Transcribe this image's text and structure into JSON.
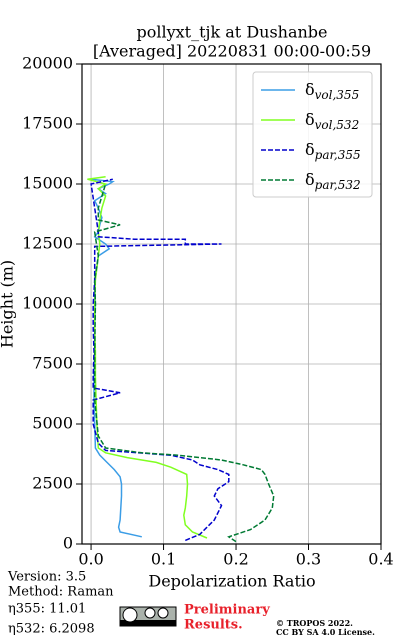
{
  "chart_data": {
    "type": "profile",
    "title": "pollyxt_tjk at Dushanbe",
    "subtitle": "[Averaged] 20220831 00:00-00:59",
    "x_label": "Depolarization Ratio",
    "y_label": "Height (m)",
    "xlim": [
      -0.0125,
      0.4
    ],
    "ylim": [
      0,
      20000
    ],
    "xticks": [
      {
        "value": 0,
        "label": "0.0"
      },
      0.1,
      0.2,
      0.3,
      0.4
    ],
    "yticks": [
      0,
      2500,
      5000,
      7500,
      10000,
      12500,
      15000,
      17500,
      20000
    ],
    "grid": true,
    "legend": "upper right",
    "series": [
      {
        "name": "δvol,355",
        "color": "#3b9de6",
        "linestyle": "solid",
        "y": [
          300,
          500,
          700,
          1000,
          1500,
          2000,
          2500,
          2800,
          3100,
          3400,
          3700,
          4000,
          5000,
          6000,
          7000,
          8000,
          9000,
          10000,
          11000,
          11500,
          12000,
          12300,
          12500,
          12800,
          13000,
          13300,
          13600,
          14000,
          14300,
          14600,
          14800,
          15000,
          15100,
          15200
        ],
        "x": [
          0.07,
          0.04,
          0.038,
          0.04,
          0.041,
          0.042,
          0.042,
          0.04,
          0.032,
          0.022,
          0.012,
          0.006,
          0.005,
          0.004,
          0.004,
          0.005,
          0.005,
          0.006,
          0.005,
          0.008,
          0.01,
          0.025,
          0.02,
          0.005,
          0.01,
          0.012,
          0.015,
          0.01,
          0.005,
          0.02,
          0.01,
          0.025,
          0.03,
          0.0
        ]
      },
      {
        "name": "δvol,532",
        "color": "#80ff20",
        "linestyle": "solid",
        "y": [
          250,
          500,
          800,
          1200,
          1500,
          2000,
          2500,
          2900,
          3200,
          3400,
          3600,
          3800,
          4000,
          5000,
          6000,
          7000,
          8000,
          9000,
          10000,
          11000,
          12000,
          12500,
          13000,
          13500,
          14000,
          14500,
          14800,
          15000,
          15200,
          15300
        ],
        "x": [
          0.16,
          0.14,
          0.13,
          0.128,
          0.13,
          0.132,
          0.133,
          0.132,
          0.11,
          0.09,
          0.05,
          0.02,
          0.01,
          0.008,
          0.007,
          0.006,
          0.006,
          0.005,
          0.005,
          0.006,
          0.01,
          0.012,
          0.01,
          0.012,
          0.015,
          0.02,
          0.01,
          0.02,
          -0.005,
          0.02
        ]
      },
      {
        "name": "δpar,355",
        "color": "#0000cc",
        "linestyle": "dashed",
        "y": [
          150,
          400,
          700,
          1000,
          1300,
          1600,
          2000,
          2300,
          2600,
          2900,
          3100,
          3300,
          3500,
          3700,
          3900,
          4200,
          5000,
          6000,
          6300,
          6500,
          7000,
          8000,
          9000,
          10000,
          11000,
          12000,
          12400,
          12500,
          12500,
          12700,
          12700,
          12800,
          13000,
          14000,
          15000,
          15200
        ],
        "x": [
          0.13,
          0.15,
          0.16,
          0.17,
          0.175,
          0.18,
          0.17,
          0.175,
          0.19,
          0.19,
          0.175,
          0.15,
          0.14,
          0.11,
          0.02,
          0.01,
          0.003,
          0.003,
          0.04,
          0.003,
          0.003,
          0.004,
          0.003,
          0.003,
          0.005,
          0.005,
          0.005,
          0.18,
          0.13,
          0.13,
          0.06,
          0.01,
          0.01,
          0.005,
          0.0,
          0.03
        ]
      },
      {
        "name": "δpar,532",
        "color": "#007a33",
        "linestyle": "dashed",
        "y": [
          100,
          300,
          600,
          1000,
          1500,
          2000,
          2500,
          2900,
          3100,
          3300,
          3500,
          3700,
          3800,
          4000,
          4500,
          6000,
          8000,
          10000,
          11000,
          12000,
          13000,
          13300,
          13500,
          14000,
          15000
        ],
        "x": [
          0.2,
          0.19,
          0.22,
          0.24,
          0.25,
          0.252,
          0.245,
          0.24,
          0.235,
          0.21,
          0.18,
          0.12,
          0.07,
          0.02,
          0.01,
          0.005,
          0.005,
          0.006,
          0.005,
          0.01,
          0.005,
          0.04,
          0.01,
          0.01,
          0.02
        ]
      }
    ]
  },
  "footer": {
    "version": "Version: 3.5",
    "method": "Method: Raman",
    "eta355": "η355:  11.01",
    "eta532": "η532: 6.2098",
    "preliminary": [
      "Preliminary",
      "Results."
    ],
    "copyright": [
      "© TROPOS 2022.",
      "CC BY SA 4.0 License."
    ]
  }
}
